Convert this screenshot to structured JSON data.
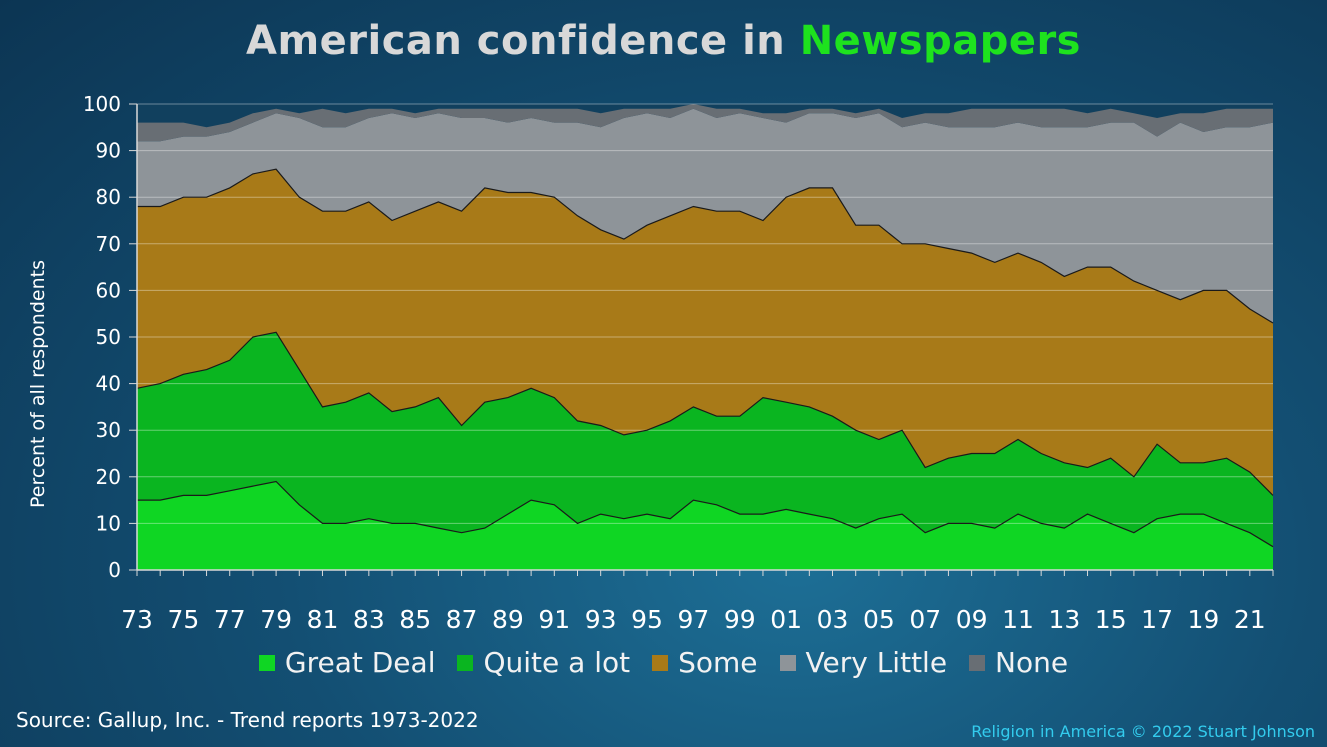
{
  "title_prefix": "American confidence in ",
  "title_highlight": "Newspapers",
  "source": "Source: Gallup, Inc. - Trend reports 1973-2022",
  "credit": "Religion in America © 2022 Stuart Johnson",
  "chart_data": {
    "type": "area",
    "stacked": true,
    "ylabel": "Percent of all respondents",
    "ylim": [
      0,
      100
    ],
    "yticks": [
      0,
      10,
      20,
      30,
      40,
      50,
      60,
      70,
      80,
      90,
      100
    ],
    "grid": true,
    "legend_position": "bottom",
    "x": [
      1973,
      1974,
      1975,
      1976,
      1977,
      1978,
      1979,
      1980,
      1981,
      1982,
      1983,
      1984,
      1985,
      1986,
      1987,
      1988,
      1989,
      1990,
      1991,
      1992,
      1993,
      1994,
      1995,
      1996,
      1997,
      1998,
      1999,
      2000,
      2001,
      2002,
      2003,
      2004,
      2005,
      2006,
      2007,
      2008,
      2009,
      2010,
      2011,
      2012,
      2013,
      2014,
      2015,
      2016,
      2017,
      2018,
      2019,
      2020,
      2021,
      2022
    ],
    "xtick_labels": [
      "73",
      "75",
      "77",
      "79",
      "81",
      "83",
      "85",
      "87",
      "89",
      "91",
      "93",
      "95",
      "97",
      "99",
      "01",
      "03",
      "05",
      "07",
      "09",
      "11",
      "13",
      "15",
      "17",
      "19",
      "21"
    ],
    "series": [
      {
        "name": "Great Deal",
        "color": "#0fd623",
        "values": [
          15,
          15,
          16,
          16,
          17,
          18,
          19,
          14,
          10,
          10,
          11,
          10,
          10,
          9,
          8,
          9,
          12,
          15,
          14,
          10,
          12,
          11,
          12,
          11,
          15,
          14,
          12,
          12,
          13,
          12,
          11,
          9,
          11,
          12,
          8,
          10,
          10,
          9,
          12,
          10,
          9,
          12,
          10,
          8,
          11,
          12,
          12,
          10,
          8,
          5
        ]
      },
      {
        "name": "Quite a lot",
        "color": "#0ab520",
        "values": [
          24,
          25,
          26,
          27,
          28,
          32,
          32,
          29,
          25,
          26,
          27,
          24,
          25,
          28,
          23,
          27,
          25,
          24,
          23,
          22,
          19,
          18,
          18,
          21,
          20,
          19,
          21,
          25,
          23,
          23,
          22,
          21,
          17,
          18,
          14,
          14,
          15,
          16,
          16,
          15,
          14,
          10,
          14,
          12,
          16,
          11,
          11,
          14,
          13,
          11
        ]
      },
      {
        "name": "Some",
        "color": "#a87a18",
        "values": [
          39,
          38,
          38,
          37,
          37,
          35,
          35,
          37,
          42,
          41,
          41,
          41,
          42,
          42,
          46,
          46,
          44,
          42,
          43,
          44,
          42,
          42,
          44,
          44,
          43,
          44,
          44,
          38,
          44,
          47,
          49,
          44,
          46,
          40,
          48,
          45,
          43,
          41,
          40,
          41,
          40,
          43,
          41,
          42,
          33,
          35,
          37,
          36,
          35,
          37
        ]
      },
      {
        "name": "Very Little",
        "color": "#8e9499",
        "values": [
          14,
          14,
          13,
          13,
          12,
          11,
          12,
          17,
          18,
          18,
          18,
          23,
          20,
          19,
          20,
          15,
          15,
          16,
          16,
          20,
          22,
          26,
          24,
          21,
          21,
          20,
          21,
          22,
          16,
          16,
          16,
          23,
          24,
          25,
          26,
          26,
          27,
          29,
          28,
          29,
          32,
          30,
          31,
          34,
          33,
          38,
          34,
          35,
          39,
          43
        ]
      },
      {
        "name": "None",
        "color": "#686e74",
        "values": [
          4,
          4,
          3,
          2,
          2,
          2,
          1,
          1,
          4,
          3,
          2,
          1,
          1,
          1,
          2,
          2,
          3,
          2,
          3,
          3,
          3,
          2,
          1,
          2,
          1,
          2,
          1,
          1,
          2,
          1,
          1,
          1,
          1,
          2,
          2,
          3,
          4,
          4,
          3,
          4,
          4,
          3,
          3,
          2,
          4,
          2,
          4,
          4,
          4,
          3
        ]
      }
    ]
  }
}
